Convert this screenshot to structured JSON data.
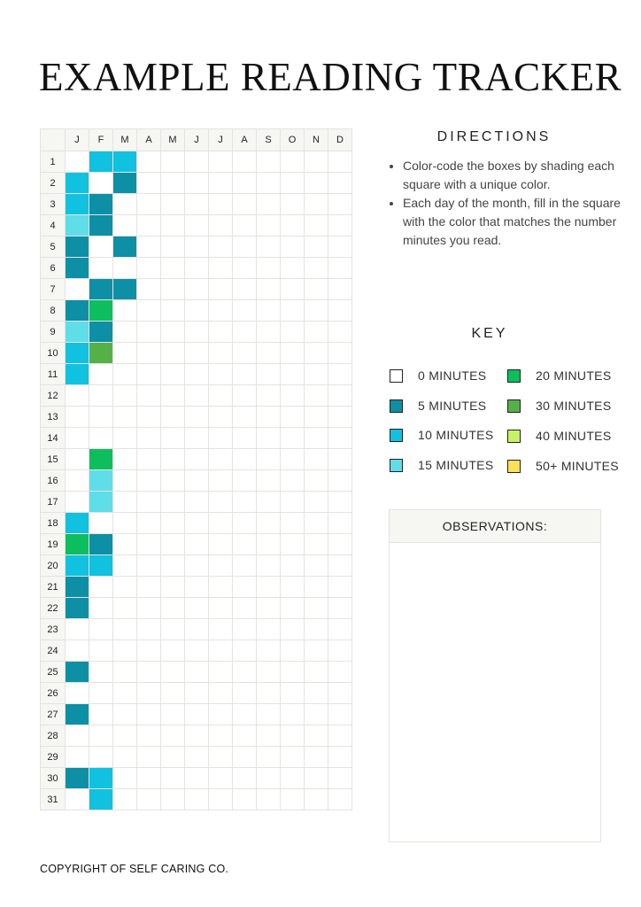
{
  "title": "EXAMPLE READING TRACKER",
  "tracker": {
    "months": [
      "J",
      "F",
      "M",
      "A",
      "M",
      "J",
      "J",
      "A",
      "S",
      "O",
      "N",
      "D"
    ],
    "days": [
      "1",
      "2",
      "3",
      "4",
      "5",
      "6",
      "7",
      "8",
      "9",
      "10",
      "11",
      "12",
      "13",
      "14",
      "15",
      "16",
      "17",
      "18",
      "19",
      "20",
      "21",
      "22",
      "23",
      "24",
      "25",
      "26",
      "27",
      "28",
      "29",
      "30",
      "31"
    ],
    "minutes_by_day": [
      [
        0,
        10,
        10,
        0,
        0,
        0,
        0,
        0,
        0,
        0,
        0,
        0
      ],
      [
        10,
        0,
        5,
        0,
        0,
        0,
        0,
        0,
        0,
        0,
        0,
        0
      ],
      [
        10,
        5,
        0,
        0,
        0,
        0,
        0,
        0,
        0,
        0,
        0,
        0
      ],
      [
        15,
        5,
        0,
        0,
        0,
        0,
        0,
        0,
        0,
        0,
        0,
        0
      ],
      [
        5,
        0,
        5,
        0,
        0,
        0,
        0,
        0,
        0,
        0,
        0,
        0
      ],
      [
        5,
        0,
        0,
        0,
        0,
        0,
        0,
        0,
        0,
        0,
        0,
        0
      ],
      [
        0,
        5,
        5,
        0,
        0,
        0,
        0,
        0,
        0,
        0,
        0,
        0
      ],
      [
        5,
        20,
        0,
        0,
        0,
        0,
        0,
        0,
        0,
        0,
        0,
        0
      ],
      [
        15,
        5,
        0,
        0,
        0,
        0,
        0,
        0,
        0,
        0,
        0,
        0
      ],
      [
        10,
        30,
        0,
        0,
        0,
        0,
        0,
        0,
        0,
        0,
        0,
        0
      ],
      [
        10,
        0,
        0,
        0,
        0,
        0,
        0,
        0,
        0,
        0,
        0,
        0
      ],
      [
        0,
        0,
        0,
        0,
        0,
        0,
        0,
        0,
        0,
        0,
        0,
        0
      ],
      [
        0,
        0,
        0,
        0,
        0,
        0,
        0,
        0,
        0,
        0,
        0,
        0
      ],
      [
        0,
        0,
        0,
        0,
        0,
        0,
        0,
        0,
        0,
        0,
        0,
        0
      ],
      [
        0,
        20,
        0,
        0,
        0,
        0,
        0,
        0,
        0,
        0,
        0,
        0
      ],
      [
        0,
        15,
        0,
        0,
        0,
        0,
        0,
        0,
        0,
        0,
        0,
        0
      ],
      [
        0,
        15,
        0,
        0,
        0,
        0,
        0,
        0,
        0,
        0,
        0,
        0
      ],
      [
        10,
        0,
        0,
        0,
        0,
        0,
        0,
        0,
        0,
        0,
        0,
        0
      ],
      [
        20,
        5,
        0,
        0,
        0,
        0,
        0,
        0,
        0,
        0,
        0,
        0
      ],
      [
        10,
        10,
        0,
        0,
        0,
        0,
        0,
        0,
        0,
        0,
        0,
        0
      ],
      [
        5,
        0,
        0,
        0,
        0,
        0,
        0,
        0,
        0,
        0,
        0,
        0
      ],
      [
        5,
        0,
        0,
        0,
        0,
        0,
        0,
        0,
        0,
        0,
        0,
        0
      ],
      [
        0,
        0,
        0,
        0,
        0,
        0,
        0,
        0,
        0,
        0,
        0,
        0
      ],
      [
        0,
        0,
        0,
        0,
        0,
        0,
        0,
        0,
        0,
        0,
        0,
        0
      ],
      [
        5,
        0,
        0,
        0,
        0,
        0,
        0,
        0,
        0,
        0,
        0,
        0
      ],
      [
        0,
        0,
        0,
        0,
        0,
        0,
        0,
        0,
        0,
        0,
        0,
        0
      ],
      [
        5,
        0,
        0,
        0,
        0,
        0,
        0,
        0,
        0,
        0,
        0,
        0
      ],
      [
        0,
        0,
        0,
        0,
        0,
        0,
        0,
        0,
        0,
        0,
        0,
        0
      ],
      [
        0,
        0,
        0,
        0,
        0,
        0,
        0,
        0,
        0,
        0,
        0,
        0
      ],
      [
        5,
        10,
        0,
        0,
        0,
        0,
        0,
        0,
        0,
        0,
        0,
        0
      ],
      [
        0,
        10,
        0,
        0,
        0,
        0,
        0,
        0,
        0,
        0,
        0,
        0
      ]
    ]
  },
  "directions": {
    "title": "DIRECTIONS",
    "items": [
      "Color-code the boxes by shading each square with a unique color.",
      "Each day of the month, fill in the square with the color that matches the number minutes you read."
    ]
  },
  "key": {
    "title": "KEY",
    "items": [
      {
        "label": "0 MINUTES",
        "minutes": 0,
        "color": "#ffffff"
      },
      {
        "label": "5 MINUTES",
        "minutes": 5,
        "color": "#0d8fa6"
      },
      {
        "label": "10 MINUTES",
        "minutes": 10,
        "color": "#11c1e0"
      },
      {
        "label": "15 MINUTES",
        "minutes": 15,
        "color": "#5fdde9"
      },
      {
        "label": "20 MINUTES",
        "minutes": 20,
        "color": "#0dbe5e"
      },
      {
        "label": "30 MINUTES",
        "minutes": 30,
        "color": "#55b048"
      },
      {
        "label": "40 MINUTES",
        "minutes": 40,
        "color": "#c6f26a"
      },
      {
        "label": "50+ MINUTES",
        "minutes": 50,
        "color": "#fde05a"
      }
    ]
  },
  "observations": {
    "title": "OBSERVATIONS:"
  },
  "copyright": "COPYRIGHT OF SELF CARING CO."
}
